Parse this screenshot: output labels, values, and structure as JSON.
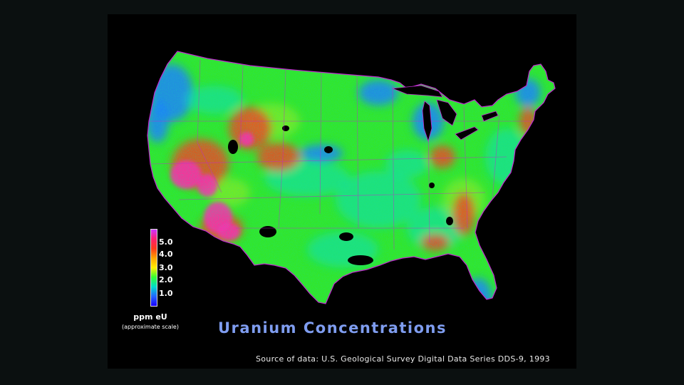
{
  "title": "Uranium Concentrations",
  "source": "Source of data:  U.S. Geological Survey Digital Data Series DDS-9, 1993",
  "legend": {
    "unit": "ppm eU",
    "note": "(approximate scale)",
    "ticks": [
      "5.0",
      "4.0",
      "3.0",
      "2.0",
      "1.0"
    ],
    "colors": [
      "#cc33ff",
      "#ff1f6e",
      "#ff3a1a",
      "#ffa500",
      "#ffee00",
      "#33ff33",
      "#00ddcc",
      "#2266ff",
      "#1a00ff"
    ]
  },
  "map_colors": {
    "base": "#33e62a",
    "low": "#1f7fff",
    "mid": "#10e0b0",
    "high": "#ff3b20",
    "very_high": "#ff2ab0",
    "yellow": "#e8f020",
    "no_data": "#000000",
    "borders": "#c02ad0"
  }
}
